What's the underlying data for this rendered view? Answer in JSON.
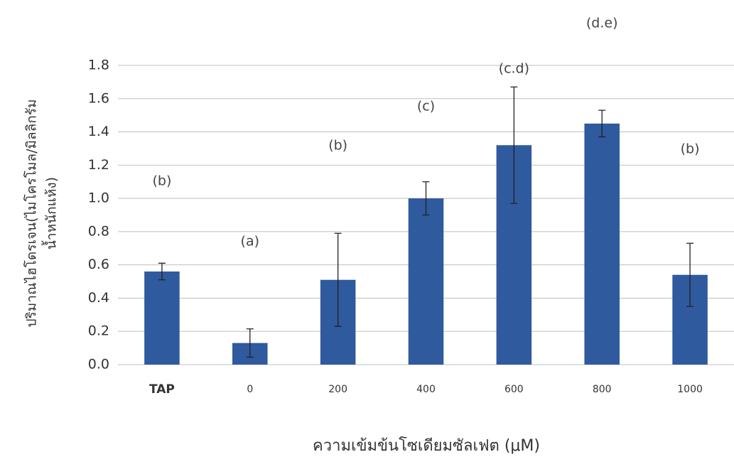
{
  "chart_data": {
    "type": "bar",
    "y_label": [
      "ปริมาณไฮโดรเจน(ไมโครโมล/มิลลิกรัม",
      "น้ำหนักแห้ง)"
    ],
    "x_label": "ความเข้มข้นโซเดียมซัลเฟต (μM)",
    "categories": [
      "TAP",
      "0",
      "200",
      "400",
      "600",
      "800",
      "1000"
    ],
    "values": [
      0.56,
      0.13,
      0.51,
      1.0,
      1.32,
      1.45,
      0.54
    ],
    "errors": [
      0.05,
      0.085,
      0.28,
      0.1,
      0.35,
      0.08,
      0.19
    ],
    "annotations": [
      "(b)",
      "(a)",
      "(b)",
      "(c)",
      "(c.d)",
      "(d.e)",
      "(b)"
    ],
    "color": "#2f5a9e",
    "ylim": [
      0,
      1.8
    ],
    "yticks": [
      {
        "value": 0,
        "label": "0.0"
      },
      {
        "value": 0.2,
        "label": "0.2"
      },
      {
        "value": 0.4,
        "label": "0.4"
      },
      {
        "value": 0.6,
        "label": "0.6"
      },
      {
        "value": 0.8,
        "label": "0.8"
      },
      {
        "value": 1.0,
        "label": "1.0"
      },
      {
        "value": 1.2,
        "label": "1.2"
      },
      {
        "value": 1.4,
        "label": "1.4"
      },
      {
        "value": 1.6,
        "label": "1.6"
      },
      {
        "value": 1.8,
        "label": "1.8"
      }
    ],
    "grid": true
  }
}
